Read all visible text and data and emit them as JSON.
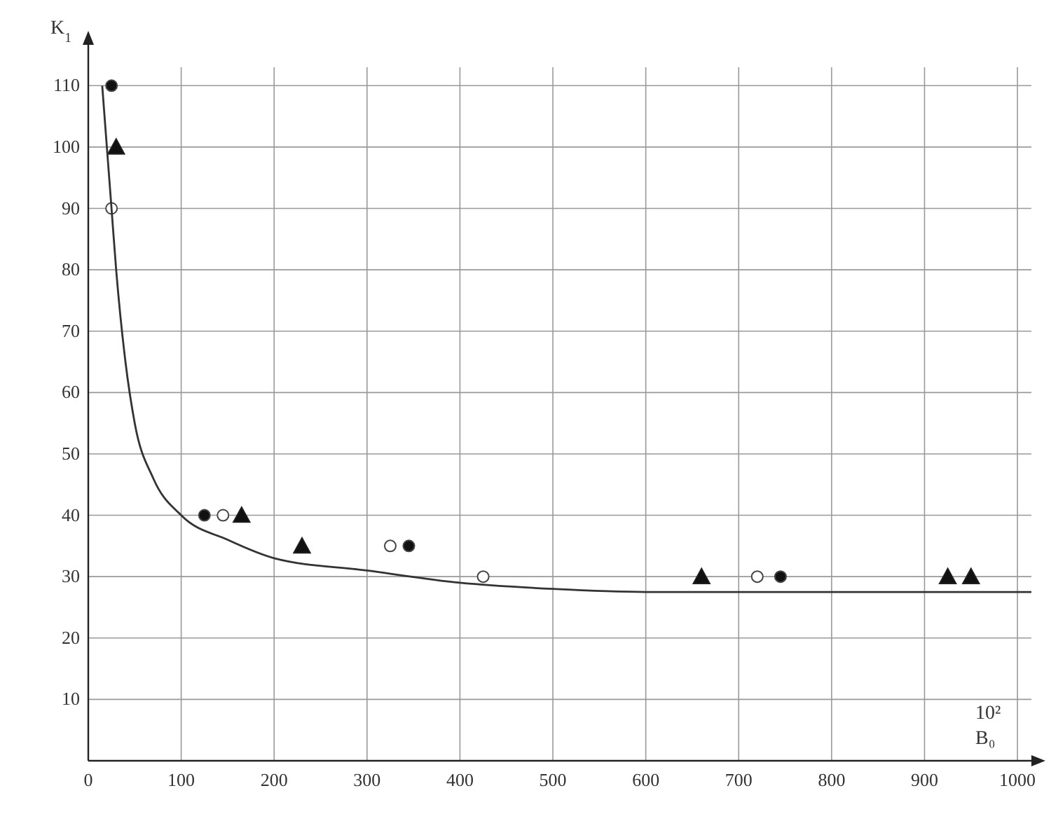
{
  "chart_data": {
    "type": "scatter",
    "xlabel": "10² B₀",
    "ylabel": "K$_{1}$",
    "xlim": [
      0,
      1015
    ],
    "ylim": [
      0,
      113
    ],
    "xticks": [
      0,
      100,
      200,
      300,
      400,
      500,
      600,
      700,
      800,
      900,
      1000
    ],
    "yticks": [
      10,
      20,
      30,
      40,
      50,
      60,
      70,
      80,
      90,
      100,
      110
    ],
    "grid": true,
    "series": [
      {
        "marker": "circle",
        "color": "#111111",
        "x": [
          25,
          125,
          345,
          745
        ],
        "values": [
          110,
          40,
          35,
          30
        ]
      },
      {
        "marker": "circle",
        "color": "#ffffff",
        "x": [
          25,
          145,
          325,
          425,
          720
        ],
        "values": [
          90,
          40,
          35,
          30,
          30
        ]
      },
      {
        "marker": "triangle",
        "color": "#111111",
        "x": [
          30,
          165,
          230,
          660,
          925,
          950
        ],
        "values": [
          100,
          40,
          35,
          30,
          30,
          30
        ]
      },
      {
        "type": "line",
        "marker": "none",
        "color": "#333333",
        "x": [
          15,
          20,
          25,
          30,
          40,
          50,
          70,
          100,
          150,
          200,
          300,
          400,
          500,
          600,
          800,
          1015
        ],
        "values": [
          110,
          100,
          90,
          80,
          65,
          55,
          46,
          40,
          36,
          33,
          31,
          29,
          28,
          27.5,
          27.5,
          27.5
        ]
      }
    ]
  }
}
